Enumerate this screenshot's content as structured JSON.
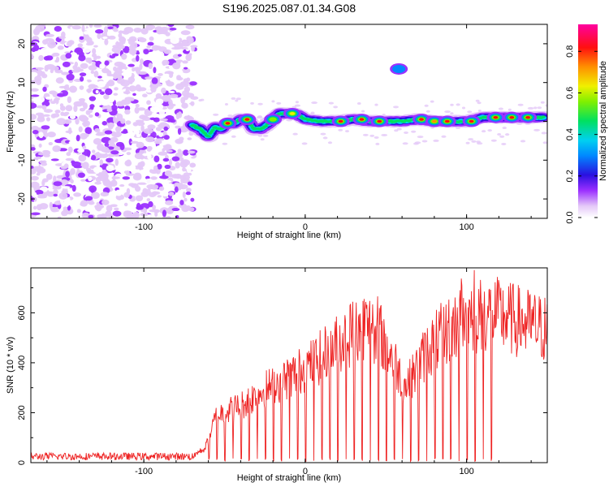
{
  "title": "S196.2025.087.01.34.G08",
  "chart_data": [
    {
      "type": "heatmap",
      "xlabel": "Height of straight line (km)",
      "ylabel": "Frequency (Hz)",
      "xlim": [
        -170,
        150
      ],
      "ylim": [
        -25,
        25
      ],
      "xticks": [
        -100,
        0,
        100
      ],
      "yticks": [
        -20,
        -10,
        0,
        10,
        20
      ],
      "colorbar": {
        "label": "Normalized spectral amplitude",
        "range": [
          0,
          0.93
        ],
        "ticks": [
          0.0,
          0.2,
          0.4,
          0.6,
          0.8
        ]
      },
      "noise_region_x": [
        -170,
        -68
      ],
      "ridge": [
        {
          "x": -70,
          "y": -1.0
        },
        {
          "x": -65,
          "y": -2.0
        },
        {
          "x": -60,
          "y": -4.0
        },
        {
          "x": -56,
          "y": -1.5
        },
        {
          "x": -52,
          "y": -2.0
        },
        {
          "x": -48,
          "y": -0.5
        },
        {
          "x": -44,
          "y": -0.5
        },
        {
          "x": -40,
          "y": 0.5
        },
        {
          "x": -36,
          "y": 0.5
        },
        {
          "x": -32,
          "y": -2.0
        },
        {
          "x": -28,
          "y": -2.0
        },
        {
          "x": -24,
          "y": -1.0
        },
        {
          "x": -20,
          "y": 0.5
        },
        {
          "x": -16,
          "y": 2.0
        },
        {
          "x": -12,
          "y": 2.0
        },
        {
          "x": -6,
          "y": 2.0
        },
        {
          "x": 0,
          "y": 0.5
        },
        {
          "x": 10,
          "y": 0.0
        },
        {
          "x": 20,
          "y": 0.0
        },
        {
          "x": 30,
          "y": 0.5
        },
        {
          "x": 40,
          "y": 0.0
        },
        {
          "x": 50,
          "y": 0.0
        },
        {
          "x": 60,
          "y": 0.0
        },
        {
          "x": 70,
          "y": 0.5
        },
        {
          "x": 80,
          "y": 0.0
        },
        {
          "x": 90,
          "y": 0.0
        },
        {
          "x": 100,
          "y": 0.0
        },
        {
          "x": 110,
          "y": 1.0
        },
        {
          "x": 120,
          "y": 1.0
        },
        {
          "x": 130,
          "y": 1.0
        },
        {
          "x": 140,
          "y": 1.0
        },
        {
          "x": 148,
          "y": 1.0
        }
      ],
      "hotspots": [
        {
          "x": -48,
          "y": -0.5,
          "amp": 0.85
        },
        {
          "x": -36,
          "y": 0.5,
          "amp": 0.9
        },
        {
          "x": -20,
          "y": 0.5,
          "amp": 0.6
        },
        {
          "x": -8,
          "y": 2.0,
          "amp": 0.7
        },
        {
          "x": 22,
          "y": 0.0,
          "amp": 0.9
        },
        {
          "x": 35,
          "y": 0.5,
          "amp": 0.85
        },
        {
          "x": 46,
          "y": 0.0,
          "amp": 0.85
        },
        {
          "x": 72,
          "y": 0.5,
          "amp": 0.9
        },
        {
          "x": 80,
          "y": 0.0,
          "amp": 0.75
        },
        {
          "x": 88,
          "y": 0.0,
          "amp": 0.85
        },
        {
          "x": 103,
          "y": 0.0,
          "amp": 0.9
        },
        {
          "x": 118,
          "y": 1.0,
          "amp": 0.9
        },
        {
          "x": 128,
          "y": 1.0,
          "amp": 0.85
        },
        {
          "x": 138,
          "y": 1.0,
          "amp": 0.9
        },
        {
          "x": 58,
          "y": 13.5,
          "amp": 0.35
        }
      ]
    },
    {
      "type": "line",
      "xlabel": "Height of straight line (km)",
      "ylabel": "SNR (10 * v/v)",
      "xlim": [
        -170,
        150
      ],
      "ylim": [
        0,
        780
      ],
      "xticks": [
        -100,
        0,
        100
      ],
      "yticks": [
        0,
        200,
        400,
        600
      ],
      "color": "#ee2222",
      "envelope": [
        {
          "x": -170,
          "y": 30
        },
        {
          "x": -70,
          "y": 30
        },
        {
          "x": -62,
          "y": 60
        },
        {
          "x": -55,
          "y": 200
        },
        {
          "x": -40,
          "y": 240
        },
        {
          "x": -25,
          "y": 310
        },
        {
          "x": -10,
          "y": 360
        },
        {
          "x": 5,
          "y": 420
        },
        {
          "x": 20,
          "y": 500
        },
        {
          "x": 35,
          "y": 580
        },
        {
          "x": 45,
          "y": 560
        },
        {
          "x": 55,
          "y": 430
        },
        {
          "x": 62,
          "y": 320
        },
        {
          "x": 68,
          "y": 380
        },
        {
          "x": 75,
          "y": 470
        },
        {
          "x": 85,
          "y": 540
        },
        {
          "x": 100,
          "y": 610
        },
        {
          "x": 115,
          "y": 630
        },
        {
          "x": 130,
          "y": 600
        },
        {
          "x": 150,
          "y": 560
        }
      ],
      "dips_every_km": 5,
      "dips_range": [
        -60,
        118
      ]
    }
  ]
}
